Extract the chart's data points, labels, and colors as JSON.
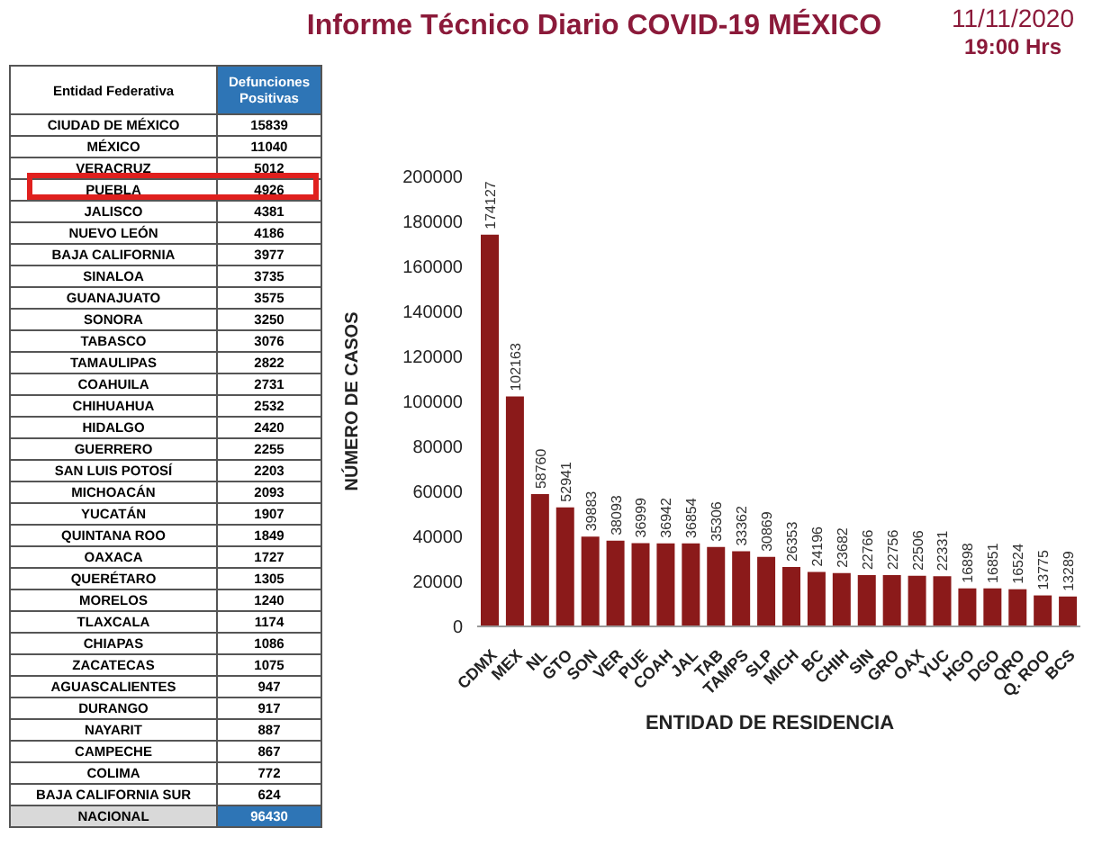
{
  "chart_data": [
    {
      "type": "other",
      "annotations": [
        "Entidad Federativa",
        "Defunciones Positivas"
      ],
      "categories": [
        "CIUDAD DE MÉXICO",
        "MÉXICO",
        "VERACRUZ",
        "PUEBLA",
        "JALISCO",
        "NUEVO LEÓN",
        "BAJA CALIFORNIA",
        "SINALOA",
        "GUANAJUATO",
        "SONORA",
        "TABASCO",
        "TAMAULIPAS",
        "COAHUILA",
        "CHIHUAHUA",
        "HIDALGO",
        "GUERRERO",
        "SAN LUIS POTOSÍ",
        "MICHOACÁN",
        "YUCATÁN",
        "QUINTANA ROO",
        "OAXACA",
        "QUERÉTARO",
        "MORELOS",
        "TLAXCALA",
        "CHIAPAS",
        "ZACATECAS",
        "AGUASCALIENTES",
        "DURANGO",
        "NAYARIT",
        "CAMPECHE",
        "COLIMA",
        "BAJA CALIFORNIA SUR",
        "NACIONAL"
      ],
      "values": [
        15839,
        11040,
        5012,
        4926,
        4381,
        4186,
        3977,
        3735,
        3575,
        3250,
        3076,
        2822,
        2731,
        2532,
        2420,
        2255,
        2203,
        2093,
        1907,
        1849,
        1727,
        1305,
        1240,
        1174,
        1086,
        1075,
        947,
        917,
        887,
        867,
        772,
        624,
        96430
      ],
      "data_labels": true
    },
    {
      "type": "bar",
      "title": "Informe Técnico Diario COVID-19 MÉXICO",
      "annotations": [
        "11/11/2020",
        "19:00 Hrs"
      ],
      "xlabel": "ENTIDAD DE RESIDENCIA",
      "ylabel": "NÚMERO DE CASOS",
      "categories": [
        "CDMX",
        "MEX",
        "NL",
        "GTO",
        "SON",
        "VER",
        "PUE",
        "COAH",
        "JAL",
        "TAB",
        "TAMPS",
        "SLP",
        "MICH",
        "BC",
        "CHIH",
        "SIN",
        "GRO",
        "OAX",
        "YUC",
        "HGO",
        "DGO",
        "QRO",
        "Q. ROO",
        "BCS"
      ],
      "values": [
        174127,
        102163,
        58760,
        52941,
        39883,
        38093,
        36999,
        36942,
        36854,
        35306,
        33362,
        30869,
        26353,
        24196,
        23682,
        22766,
        22756,
        22506,
        22331,
        16898,
        16851,
        16524,
        13775,
        13289
      ],
      "color": "#8b1a1a",
      "ylim": [
        0,
        200000
      ],
      "yticks": [
        0,
        20000,
        40000,
        60000,
        80000,
        100000,
        120000,
        140000,
        160000,
        180000,
        200000
      ],
      "data_labels": true,
      "grid": false
    }
  ]
}
